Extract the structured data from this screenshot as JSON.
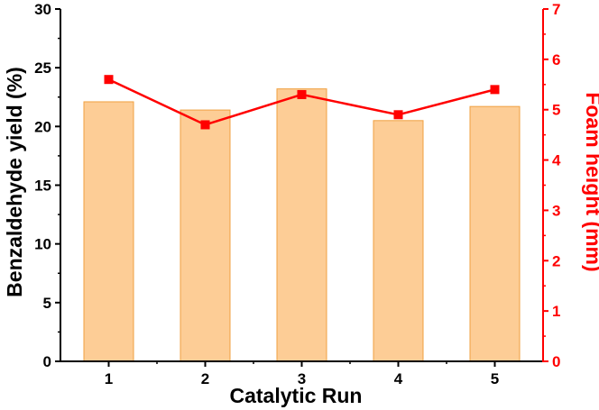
{
  "chart_data": {
    "type": "bar+line",
    "xlabel": "Catalytic Run",
    "categories": [
      "1",
      "2",
      "3",
      "4",
      "5"
    ],
    "left_axis": {
      "label": "Benzaldehyde yield (%)",
      "ylim": [
        0,
        30
      ],
      "ticks": [
        "0",
        "5",
        "10",
        "15",
        "20",
        "25",
        "30"
      ],
      "color": "#000000"
    },
    "right_axis": {
      "label": "Foam height (mm)",
      "ylim": [
        0,
        7
      ],
      "ticks": [
        "0",
        "1",
        "2",
        "3",
        "4",
        "5",
        "6",
        "7"
      ],
      "color": "#ff0000"
    },
    "series": [
      {
        "type": "bar",
        "axis": "left",
        "values": [
          22.1,
          21.4,
          23.2,
          20.5,
          21.7
        ],
        "fill": "#fdcd96",
        "stroke": "#f0a040"
      },
      {
        "type": "line",
        "axis": "right",
        "values": [
          5.6,
          4.7,
          5.3,
          4.9,
          5.4
        ],
        "color": "#ff0000",
        "marker": "square"
      }
    ],
    "grid": false,
    "legend": "none"
  }
}
